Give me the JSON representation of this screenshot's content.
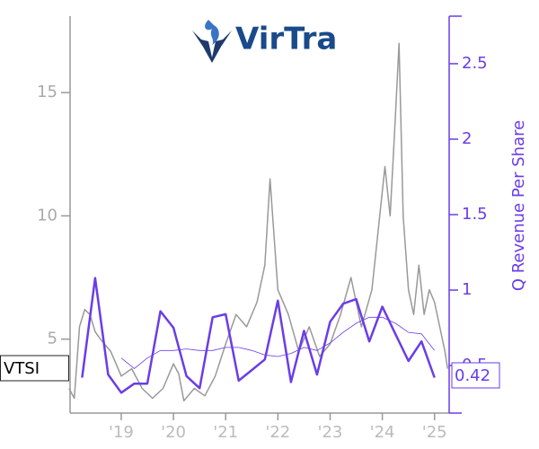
{
  "logo_text": "VirTra",
  "chart_data": {
    "type": "line",
    "xlim": [
      2018.02,
      2025.28
    ],
    "xticks": [
      {
        "value": 2019,
        "label": "'19"
      },
      {
        "value": 2020,
        "label": "'20"
      },
      {
        "value": 2021,
        "label": "'21"
      },
      {
        "value": 2022,
        "label": "'22"
      },
      {
        "value": 2023,
        "label": "'23"
      },
      {
        "value": 2024,
        "label": "'24"
      },
      {
        "value": 2025,
        "label": "'25"
      }
    ],
    "ylim": [
      2.0,
      18.1
    ],
    "yticks": [
      5,
      10,
      15
    ],
    "y2lim": [
      0.185,
      2.815
    ],
    "y2ticks": [
      0.5,
      1.0,
      1.5,
      2.0,
      2.5
    ],
    "y2label": "Q Revenue Per Share",
    "series": [
      {
        "name": "VTSI",
        "color": "#999999",
        "axis": "y",
        "x": [
          2018.0,
          2018.1,
          2018.2,
          2018.3,
          2018.4,
          2018.5,
          2018.6,
          2018.8,
          2019.0,
          2019.2,
          2019.4,
          2019.6,
          2019.8,
          2020.0,
          2020.1,
          2020.2,
          2020.4,
          2020.6,
          2020.8,
          2021.0,
          2021.2,
          2021.4,
          2021.6,
          2021.75,
          2021.85,
          2022.0,
          2022.2,
          2022.4,
          2022.6,
          2022.8,
          2023.0,
          2023.2,
          2023.4,
          2023.6,
          2023.8,
          2023.95,
          2024.05,
          2024.15,
          2024.25,
          2024.32,
          2024.4,
          2024.5,
          2024.6,
          2024.7,
          2024.8,
          2024.9,
          2025.0,
          2025.1,
          2025.2,
          2025.25
        ],
        "values": [
          3.0,
          2.6,
          5.5,
          6.2,
          6.0,
          5.3,
          5.0,
          4.5,
          3.5,
          3.8,
          3.0,
          2.6,
          3.0,
          4.0,
          3.6,
          2.5,
          3.0,
          2.7,
          3.5,
          4.8,
          6.0,
          5.5,
          6.5,
          8.0,
          11.5,
          7.0,
          6.0,
          4.5,
          5.5,
          4.3,
          4.8,
          6.0,
          7.5,
          5.5,
          7.0,
          10.0,
          12.0,
          10.0,
          14.0,
          17.0,
          10.0,
          7.0,
          6.0,
          8.0,
          6.0,
          7.0,
          6.5,
          5.5,
          4.5,
          3.8
        ]
      },
      {
        "color": "#6a3de8",
        "axis": "y2",
        "width": 2.5,
        "x": [
          2018.25,
          2018.5,
          2018.75,
          2019.0,
          2019.25,
          2019.5,
          2019.75,
          2020.0,
          2020.25,
          2020.5,
          2020.75,
          2021.0,
          2021.25,
          2021.5,
          2021.75,
          2022.0,
          2022.25,
          2022.5,
          2022.75,
          2023.0,
          2023.25,
          2023.5,
          2023.75,
          2024.0,
          2024.25,
          2024.5,
          2024.75,
          2025.0
        ],
        "values": [
          0.42,
          1.08,
          0.44,
          0.32,
          0.38,
          0.38,
          0.86,
          0.75,
          0.43,
          0.35,
          0.82,
          0.84,
          0.4,
          0.47,
          0.54,
          0.93,
          0.39,
          0.73,
          0.44,
          0.79,
          0.91,
          0.94,
          0.66,
          0.89,
          0.71,
          0.53,
          0.66,
          0.42
        ]
      },
      {
        "color": "#6a3de8",
        "axis": "y2",
        "width": 0.8,
        "x": [
          2019.0,
          2019.25,
          2019.5,
          2019.75,
          2020.0,
          2020.25,
          2020.5,
          2020.75,
          2021.0,
          2021.25,
          2021.5,
          2021.75,
          2022.0,
          2022.25,
          2022.5,
          2022.75,
          2023.0,
          2023.25,
          2023.5,
          2023.75,
          2024.0,
          2024.25,
          2024.5,
          2024.75,
          2025.0
        ],
        "values": [
          0.55,
          0.48,
          0.55,
          0.6,
          0.6,
          0.61,
          0.6,
          0.6,
          0.62,
          0.62,
          0.6,
          0.57,
          0.56,
          0.58,
          0.62,
          0.6,
          0.65,
          0.72,
          0.78,
          0.82,
          0.82,
          0.78,
          0.72,
          0.71,
          0.6
        ]
      }
    ]
  }
}
